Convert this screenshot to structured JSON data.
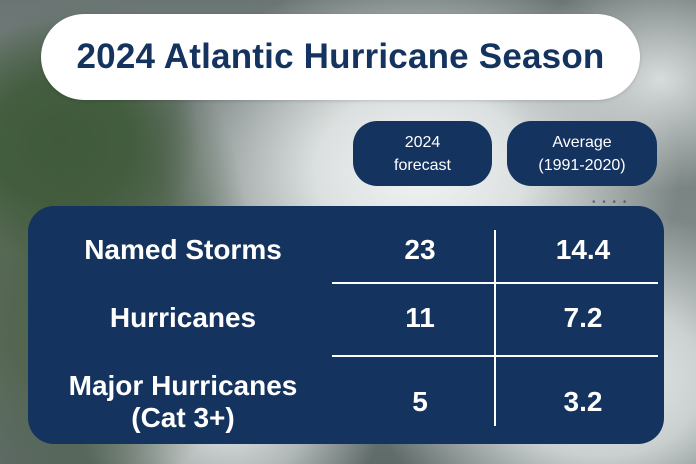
{
  "title": "2024 Atlantic Hurricane Season",
  "columns": {
    "forecast": {
      "line1": "2024",
      "line2": "forecast"
    },
    "average": {
      "line1": "Average",
      "line2": "(1991-2020)"
    }
  },
  "rows": [
    {
      "label": "Named Storms",
      "forecast": "23",
      "average": "14.4"
    },
    {
      "label": "Hurricanes",
      "forecast": "11",
      "average": "7.2"
    },
    {
      "label_line1": "Major Hurricanes",
      "label_line2": "(Cat 3+)",
      "forecast": "5",
      "average": "3.2"
    }
  ],
  "colors": {
    "navy": "#14335f",
    "white": "#ffffff"
  }
}
